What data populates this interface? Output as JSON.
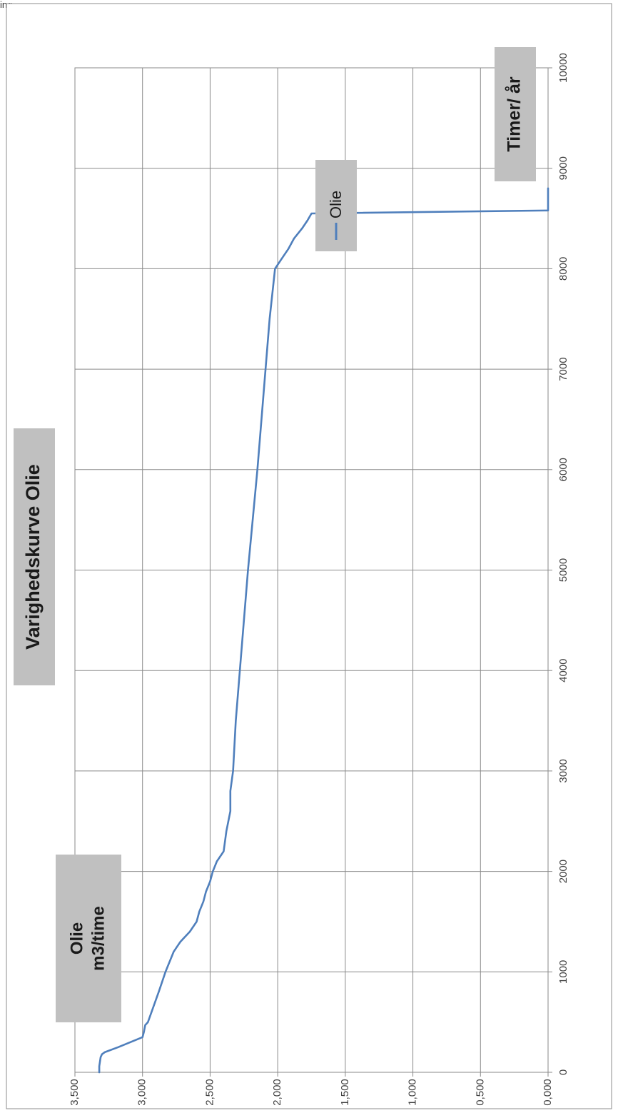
{
  "corner_text": "ing",
  "chart_data": {
    "type": "line",
    "orientation": "rotated-90-clockwise",
    "title": "Varighedskurve Olie",
    "xlabel": "Timer/ år",
    "ylabel_line1": "Olie",
    "ylabel_line2": "m3/time",
    "xlim": [
      0,
      10000
    ],
    "ylim": [
      0,
      3.5
    ],
    "x_ticks": [
      "0",
      "1000",
      "2000",
      "3000",
      "4000",
      "5000",
      "6000",
      "7000",
      "8000",
      "9000",
      "10000"
    ],
    "y_ticks": [
      "0,000",
      "0,500",
      "1,000",
      "1,500",
      "2,000",
      "2,500",
      "3,000",
      "3,500"
    ],
    "grid": true,
    "legend": {
      "position": "right",
      "entries": [
        "Olie"
      ]
    },
    "series": [
      {
        "name": "Olie",
        "color": "#4f7fbc",
        "x": [
          0,
          60,
          150,
          180,
          200,
          250,
          350,
          400,
          470,
          500,
          800,
          1000,
          1200,
          1260,
          1300,
          1400,
          1500,
          1600,
          1700,
          1800,
          1900,
          2000,
          2100,
          2200,
          2400,
          2600,
          2800,
          3000,
          3500,
          4000,
          5000,
          6000,
          7000,
          7500,
          8000,
          8100,
          8200,
          8300,
          8400,
          8480,
          8550,
          8580,
          8600,
          8800
        ],
        "y": [
          3.32,
          3.32,
          3.31,
          3.3,
          3.28,
          3.18,
          3.0,
          2.99,
          2.98,
          2.96,
          2.88,
          2.83,
          2.77,
          2.74,
          2.72,
          2.65,
          2.6,
          2.58,
          2.55,
          2.53,
          2.5,
          2.48,
          2.45,
          2.4,
          2.38,
          2.35,
          2.35,
          2.33,
          2.31,
          2.28,
          2.22,
          2.15,
          2.09,
          2.06,
          2.02,
          1.97,
          1.92,
          1.88,
          1.82,
          1.78,
          1.75,
          0.0,
          0.0,
          0.0
        ]
      }
    ]
  }
}
